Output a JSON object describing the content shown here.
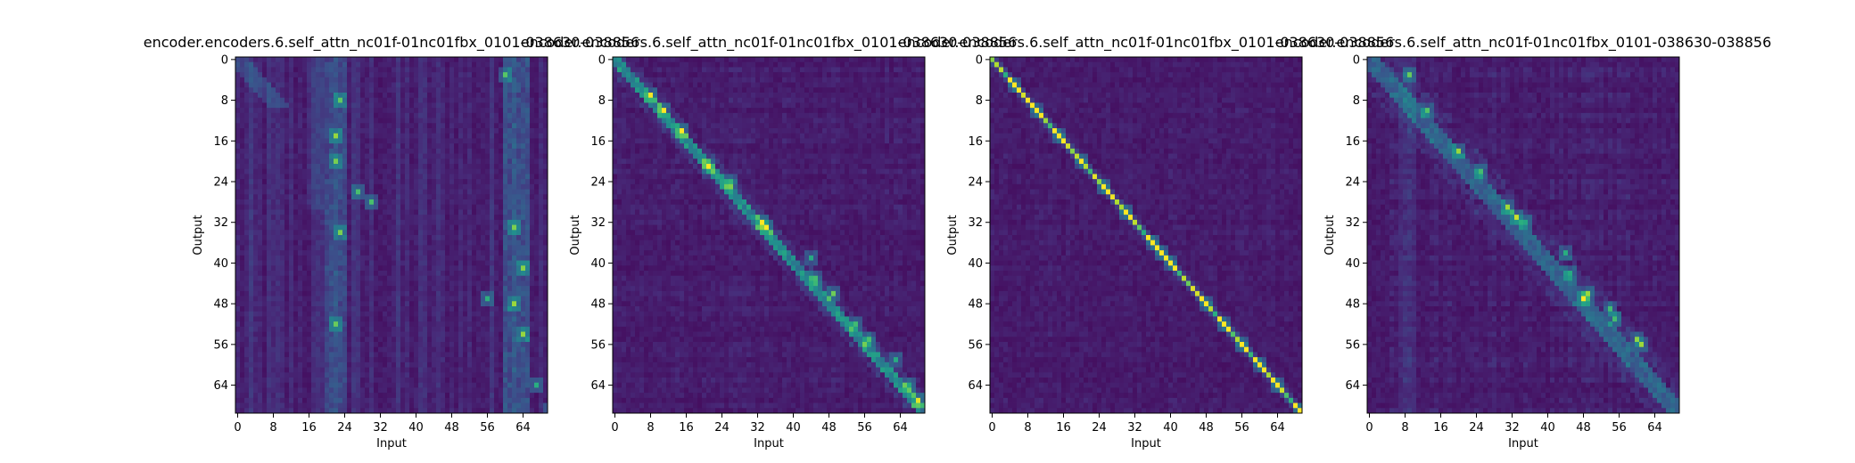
{
  "chart_data": [
    {
      "type": "heatmap",
      "title": "encoder.encoders.6.self_attn_nc01f-01nc01fbx_0101-038630-038856",
      "xlabel": "Input",
      "ylabel": "Output",
      "x_ticks": [
        0,
        8,
        16,
        24,
        32,
        40,
        48,
        56,
        64
      ],
      "y_ticks": [
        0,
        8,
        16,
        24,
        32,
        40,
        48,
        56,
        64
      ],
      "xlim": [
        0,
        70
      ],
      "ylim": [
        0,
        70
      ],
      "colormap": "viridis",
      "pattern": "columnar",
      "hotspots": [
        [
          23,
          8
        ],
        [
          22,
          15
        ],
        [
          22,
          20
        ],
        [
          27,
          26
        ],
        [
          30,
          28
        ],
        [
          23,
          34
        ],
        [
          22,
          52
        ],
        [
          56,
          47
        ],
        [
          62,
          33
        ],
        [
          64,
          41
        ],
        [
          62,
          48
        ],
        [
          64,
          54
        ],
        [
          67,
          64
        ],
        [
          70,
          69
        ],
        [
          60,
          3
        ]
      ]
    },
    {
      "type": "heatmap",
      "title": "encoder.encoders.6.self_attn_nc01f-01nc01fbx_0101-038630-038856",
      "xlabel": "Input",
      "ylabel": "Output",
      "x_ticks": [
        0,
        8,
        16,
        24,
        32,
        40,
        48,
        56,
        64
      ],
      "y_ticks": [
        0,
        8,
        16,
        24,
        32,
        40,
        48,
        56,
        64
      ],
      "xlim": [
        0,
        70
      ],
      "ylim": [
        0,
        70
      ],
      "colormap": "viridis",
      "pattern": "diagonal",
      "hotspots": [
        [
          8,
          7
        ],
        [
          11,
          10
        ],
        [
          15,
          14
        ],
        [
          21,
          21
        ],
        [
          26,
          24
        ],
        [
          33,
          32
        ],
        [
          34,
          33
        ],
        [
          44,
          39
        ],
        [
          45,
          43
        ],
        [
          49,
          46
        ],
        [
          54,
          52
        ],
        [
          57,
          55
        ],
        [
          63,
          59
        ],
        [
          66,
          64
        ],
        [
          68,
          67
        ]
      ]
    },
    {
      "type": "heatmap",
      "title": "encoder.encoders.6.self_attn_nc01f-01nc01fbx_0101-038630-038856",
      "xlabel": "Input",
      "ylabel": "Output",
      "x_ticks": [
        0,
        8,
        16,
        24,
        32,
        40,
        48,
        56,
        64
      ],
      "y_ticks": [
        0,
        8,
        16,
        24,
        32,
        40,
        48,
        56,
        64
      ],
      "xlim": [
        0,
        70
      ],
      "ylim": [
        0,
        70
      ],
      "colormap": "viridis",
      "pattern": "sharp-diagonal",
      "hotspots": [
        [
          5,
          5
        ],
        [
          10,
          10
        ],
        [
          15,
          15
        ],
        [
          20,
          20
        ],
        [
          25,
          25
        ],
        [
          30,
          30
        ],
        [
          36,
          36
        ],
        [
          38,
          38
        ],
        [
          40,
          40
        ],
        [
          48,
          48
        ],
        [
          52,
          52
        ],
        [
          56,
          56
        ],
        [
          60,
          60
        ],
        [
          64,
          64
        ],
        [
          69,
          69
        ]
      ]
    },
    {
      "type": "heatmap",
      "title": "encoder.encoders.6.self_attn_nc01f-01nc01fbx_0101-038630-038856",
      "xlabel": "Input",
      "ylabel": "Output",
      "x_ticks": [
        0,
        8,
        16,
        24,
        32,
        40,
        48,
        56,
        64
      ],
      "y_ticks": [
        0,
        8,
        16,
        24,
        32,
        40,
        48,
        56,
        64
      ],
      "xlim": [
        0,
        70
      ],
      "ylim": [
        0,
        70
      ],
      "colormap": "viridis",
      "pattern": "diagonal-diffuse",
      "hotspots": [
        [
          9,
          3
        ],
        [
          13,
          10
        ],
        [
          20,
          18
        ],
        [
          25,
          22
        ],
        [
          31,
          29
        ],
        [
          33,
          31
        ],
        [
          35,
          32
        ],
        [
          44,
          38
        ],
        [
          45,
          42
        ],
        [
          49,
          46
        ],
        [
          48,
          47
        ],
        [
          54,
          49
        ],
        [
          55,
          51
        ],
        [
          60,
          55
        ],
        [
          61,
          56
        ]
      ]
    }
  ]
}
